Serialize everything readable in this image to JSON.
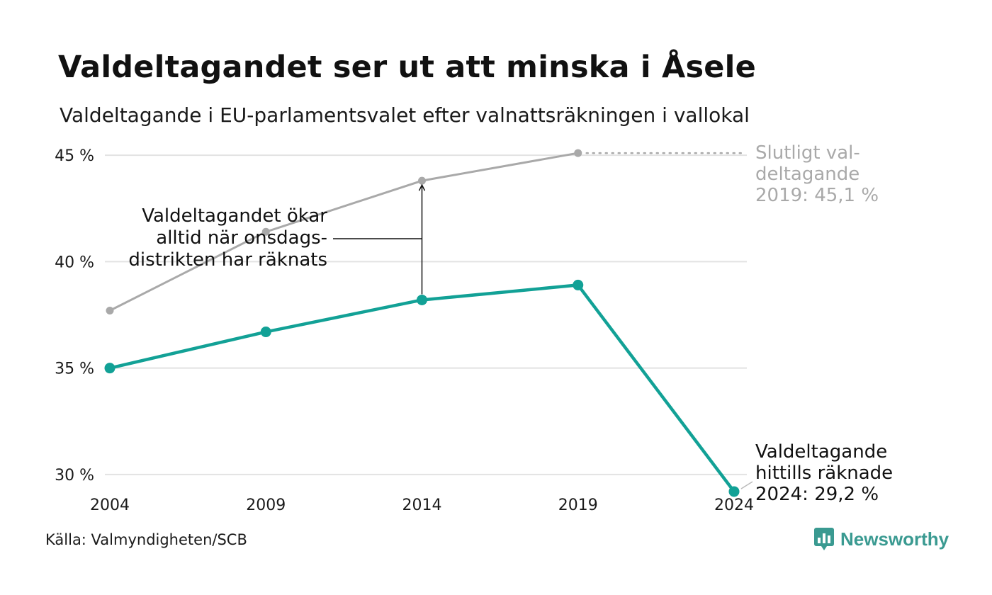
{
  "title": "Valdeltagandet ser ut att minska i Åsele",
  "subtitle": "Valdeltagande i EU-parlamentsvalet efter valnattsräkningen i vallokal",
  "source": "Källa: Valmyndigheten/SCB",
  "brand": {
    "name": "Newsworthy",
    "icon": "newsworthy-logo-icon",
    "color": "#3a9a91"
  },
  "chart_data": {
    "type": "line",
    "x": [
      2004,
      2009,
      2014,
      2019,
      2024
    ],
    "x_tick_labels": [
      "2004",
      "2009",
      "2014",
      "2019",
      "2024"
    ],
    "y_ticks": [
      30,
      35,
      40,
      45
    ],
    "y_tick_labels": [
      "30 %",
      "35 %",
      "40 %",
      "45 %"
    ],
    "ylim": [
      28.9,
      46.3
    ],
    "grid": true,
    "series": [
      {
        "key": "final",
        "color": "#a9a9a9",
        "x": [
          2004,
          2009,
          2014,
          2019
        ],
        "values": [
          37.7,
          41.4,
          43.8,
          45.1
        ]
      },
      {
        "key": "election_night",
        "color": "#12a196",
        "x": [
          2004,
          2009,
          2014,
          2019,
          2024
        ],
        "values": [
          35.0,
          36.7,
          38.2,
          38.9,
          29.2
        ]
      }
    ],
    "annotations": {
      "final_label": [
        "Slutligt val-",
        "deltagande",
        "2019: 45,1 %"
      ],
      "current_label": [
        "Valdeltagande",
        "hittills räknade",
        "2024: 29,2 %"
      ],
      "gap_label": [
        "Valdeltagandet ökar",
        "alltid när onsdags-",
        "distrikten har räknats"
      ]
    }
  }
}
